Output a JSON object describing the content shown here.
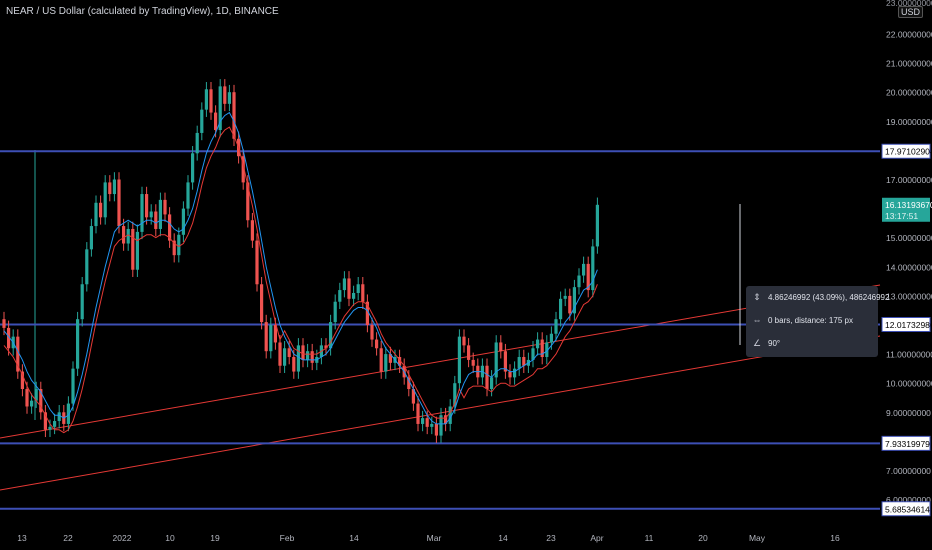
{
  "header": {
    "symbol_title": "NEAR / US Dollar (calculated by TradingView), 1D, BINANCE",
    "currency_badge": "USD"
  },
  "colors": {
    "background": "#000000",
    "candle_up": "#26a69a",
    "candle_down": "#ef5350",
    "hline": "#3d4fb5",
    "trendline": "#e53935",
    "ma_fast": "#2196f3",
    "ma_slow": "#e53935",
    "label_bg": "#ffffff",
    "price_label_bg": "#26a69a"
  },
  "price_axis": {
    "top_clipped_label": "23.00000000",
    "tick_labels": [
      "22.00000000",
      "21.00000000",
      "20.00000000",
      "19.00000000",
      "17.00000000",
      "15.00000000",
      "14.00000000",
      "13.00000000",
      "11.00000000",
      "10.00000000",
      "9.00000000",
      "7.00000000",
      "6.00000000"
    ],
    "tick_values": [
      22,
      21,
      20,
      19,
      17,
      15,
      14,
      13,
      11,
      10,
      9,
      7,
      6
    ]
  },
  "time_axis": {
    "labels": [
      "13",
      "22",
      "2022",
      "10",
      "19",
      "Feb",
      "14",
      "Mar",
      "14",
      "23",
      "Apr",
      "11",
      "20",
      "May",
      "16"
    ]
  },
  "horizontal_levels": [
    {
      "value": 17.97102904,
      "label": "17.97102904"
    },
    {
      "value": 12.0173298,
      "label": "12.01732980"
    },
    {
      "value": 7.93319979,
      "label": "7.93319979"
    },
    {
      "value": 5.68534614,
      "label": "5.68534614"
    }
  ],
  "last_price": {
    "value": 16.1319367,
    "label": "16.13193670",
    "countdown": "13:17:51"
  },
  "measure_tooltip": {
    "price_change": "4.86246992 (43.09%), 486246992",
    "bars_distance": "0 bars, distance: 175 px",
    "angle": "90°"
  },
  "chart_data": {
    "type": "candlestick",
    "symbol": "NEAR/USD",
    "interval": "1D",
    "ylim": [
      5.3,
      23.0
    ],
    "closes_approx": [
      11.9,
      11.2,
      11.6,
      10.4,
      9.8,
      9.2,
      9.4,
      9.8,
      9.0,
      8.4,
      8.5,
      8.7,
      9.0,
      8.6,
      9.3,
      10.5,
      12.2,
      13.4,
      14.6,
      15.4,
      16.2,
      15.7,
      16.9,
      16.5,
      17.0,
      15.4,
      14.8,
      15.3,
      13.9,
      15.2,
      16.5,
      15.7,
      15.9,
      15.3,
      16.3,
      15.8,
      14.9,
      14.4,
      15.1,
      16.0,
      16.9,
      17.9,
      18.6,
      19.4,
      20.1,
      19.3,
      18.7,
      20.2,
      19.6,
      20.0,
      18.4,
      17.8,
      16.9,
      15.6,
      14.9,
      13.4,
      12.1,
      11.1,
      12.0,
      11.4,
      10.6,
      11.2,
      10.9,
      10.4,
      11.3,
      10.8,
      11.1,
      10.7,
      10.9,
      11.3,
      11.2,
      12.1,
      12.8,
      13.2,
      13.6,
      12.9,
      13.1,
      13.4,
      12.8,
      12.0,
      11.5,
      11.2,
      10.4,
      11.0,
      10.7,
      10.9,
      10.6,
      10.2,
      9.8,
      9.3,
      8.6,
      8.8,
      8.5,
      8.6,
      8.2,
      8.9,
      8.6,
      9.2,
      10.0,
      11.6,
      11.3,
      10.8,
      10.6,
      10.2,
      10.6,
      9.8,
      10.2,
      11.4,
      11.1,
      10.4,
      10.2,
      10.5,
      10.9,
      10.6,
      10.8,
      11.2,
      11.5,
      10.9,
      11.4,
      11.7,
      12.2,
      12.9,
      13.0,
      12.4,
      13.3,
      13.7,
      14.1,
      13.2,
      14.7,
      16.13
    ],
    "ma_fast_approx": [
      11.8,
      11.6,
      11.4,
      11.1,
      10.8,
      10.4,
      10.1,
      9.9,
      9.7,
      9.4,
      9.1,
      8.9,
      8.9,
      8.8,
      8.9,
      9.2,
      9.7,
      10.3,
      11.0,
      11.8,
      12.6,
      13.3,
      14.0,
      14.6,
      15.2,
      15.4,
      15.5,
      15.6,
      15.5,
      15.4,
      15.5,
      15.6,
      15.6,
      15.5,
      15.6,
      15.6,
      15.5,
      15.3,
      15.2,
      15.3,
      15.6,
      16.0,
      16.6,
      17.3,
      17.9,
      18.3,
      18.6,
      19.0,
      19.2,
      19.3,
      19.0,
      18.6,
      18.0,
      17.3,
      16.6,
      15.8,
      14.9,
      14.0,
      13.3,
      12.6,
      12.0,
      11.6,
      11.3,
      11.0,
      10.9,
      10.8,
      10.8,
      10.8,
      10.8,
      10.9,
      11.0,
      11.2,
      11.5,
      11.8,
      12.1,
      12.3,
      12.5,
      12.6,
      12.6,
      12.5,
      12.2,
      11.9,
      11.5,
      11.2,
      11.0,
      10.8,
      10.6,
      10.4,
      10.1,
      9.8,
      9.5,
      9.2,
      8.9,
      8.7,
      8.6,
      8.6,
      8.6,
      8.8,
      9.1,
      9.6,
      10.0,
      10.3,
      10.4,
      10.4,
      10.4,
      10.3,
      10.2,
      10.4,
      10.5,
      10.5,
      10.4,
      10.4,
      10.5,
      10.6,
      10.7,
      10.8,
      11.0,
      11.0,
      11.1,
      11.3,
      11.5,
      11.8,
      12.1,
      12.3,
      12.6,
      12.9,
      13.2,
      13.3,
      13.5,
      13.9
    ]
  }
}
